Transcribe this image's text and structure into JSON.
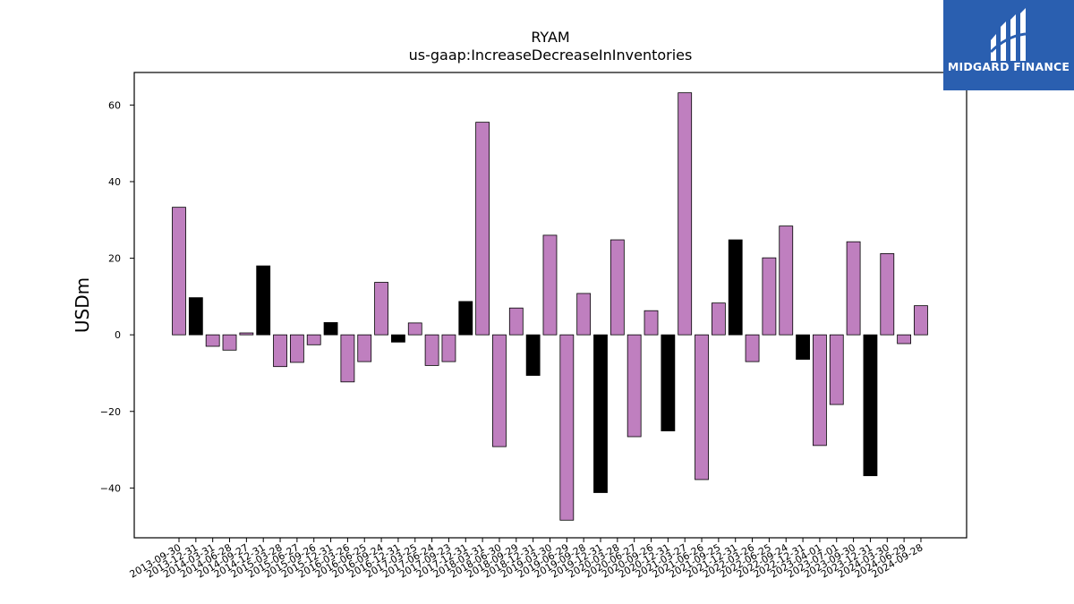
{
  "header": {
    "ticker": "RYAM",
    "metric": "us-gaap:IncreaseDecreaseInInventories"
  },
  "logo": {
    "text": "MIDGARD FINANCE",
    "bg_color": "#2a5fb0"
  },
  "chart_data": {
    "type": "bar",
    "title": "RYAM\nus-gaap:IncreaseDecreaseInInventories",
    "ylabel": "USDm",
    "xlabel": "",
    "ylim": [
      -53,
      68.5
    ],
    "yticks": [
      -40,
      -20,
      0,
      20,
      40,
      60
    ],
    "grid": false,
    "colors": {
      "default": "#bf7fbf",
      "q4": "#000000",
      "edge": "#000000"
    },
    "categories": [
      "2013-09-30",
      "2013-12-31",
      "2014-03-31",
      "2014-06-28",
      "2014-09-27",
      "2014-12-31",
      "2015-03-28",
      "2015-06-27",
      "2015-09-26",
      "2015-12-31",
      "2016-03-26",
      "2016-06-25",
      "2016-09-24",
      "2016-12-31",
      "2017-03-25",
      "2017-06-24",
      "2017-09-23",
      "2017-12-31",
      "2018-03-31",
      "2018-06-30",
      "2018-09-29",
      "2018-12-31",
      "2019-03-30",
      "2019-06-29",
      "2019-09-28",
      "2019-12-31",
      "2020-03-28",
      "2020-06-27",
      "2020-09-26",
      "2020-12-31",
      "2021-03-27",
      "2021-06-26",
      "2021-09-25",
      "2021-12-31",
      "2022-03-26",
      "2022-06-25",
      "2022-09-24",
      "2022-12-31",
      "2023-04-01",
      "2023-07-01",
      "2023-09-30",
      "2023-12-31",
      "2024-03-30",
      "2024-06-29",
      "2024-09-28"
    ],
    "values": [
      33.3,
      9.7,
      -3.0,
      -4.0,
      0.5,
      18.0,
      -8.3,
      -7.2,
      -2.6,
      3.2,
      -12.3,
      -7.0,
      13.7,
      -1.9,
      3.1,
      -8.0,
      -7.0,
      8.7,
      55.5,
      -29.2,
      7.0,
      -10.6,
      26.0,
      -48.4,
      10.8,
      -41.2,
      24.8,
      -26.6,
      6.3,
      -25.1,
      63.2,
      -37.8,
      8.3,
      24.8,
      -7.0,
      20.1,
      28.4,
      -6.4,
      -28.9,
      -18.2,
      24.3,
      -36.8,
      21.2,
      -2.3,
      7.6
    ],
    "bar_colors": [
      "default",
      "q4",
      "default",
      "default",
      "default",
      "q4",
      "default",
      "default",
      "default",
      "q4",
      "default",
      "default",
      "default",
      "q4",
      "default",
      "default",
      "default",
      "q4",
      "default",
      "default",
      "default",
      "q4",
      "default",
      "default",
      "default",
      "q4",
      "default",
      "default",
      "default",
      "q4",
      "default",
      "default",
      "default",
      "q4",
      "default",
      "default",
      "default",
      "q4",
      "default",
      "default",
      "default",
      "q4",
      "default",
      "default",
      "default"
    ]
  }
}
